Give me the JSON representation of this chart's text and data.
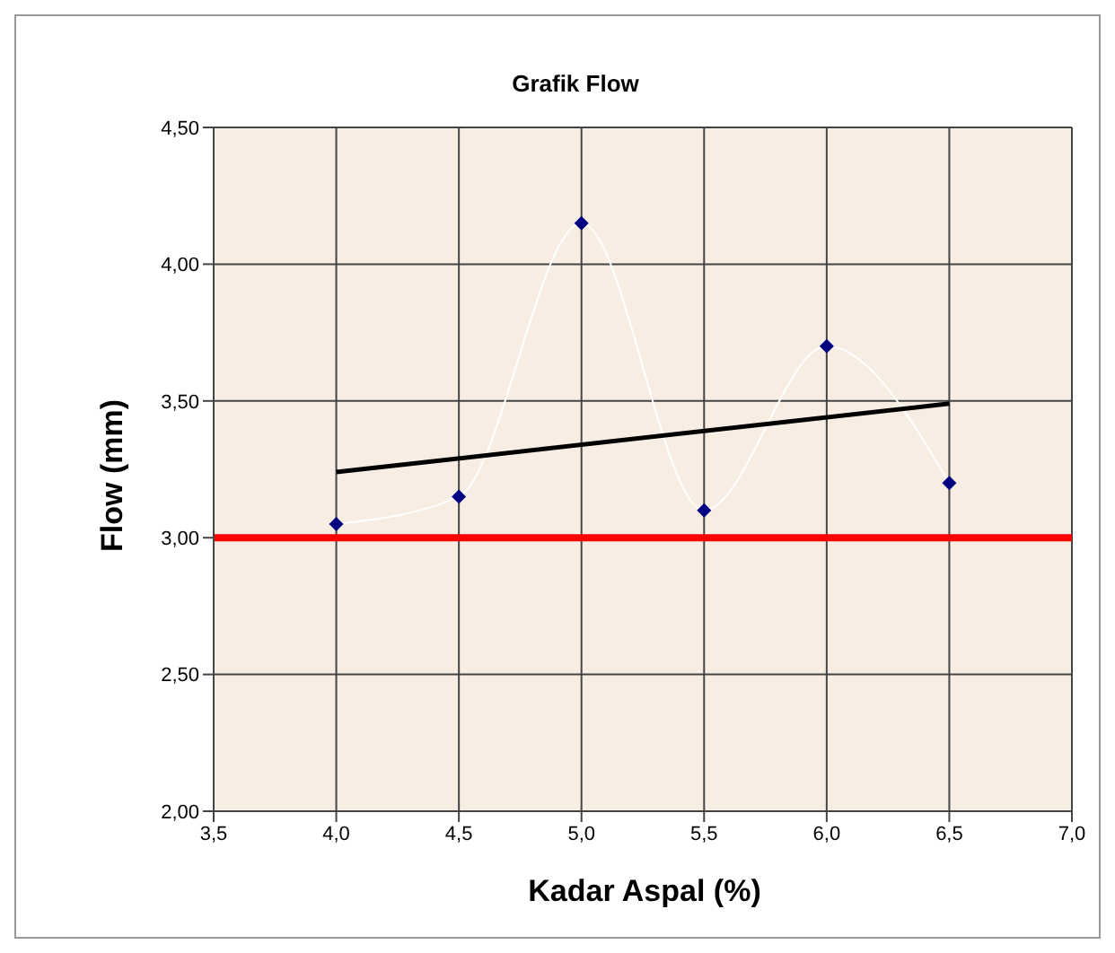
{
  "chart_data": {
    "type": "line",
    "title": "Grafik Flow",
    "xlabel": "Kadar Aspal (%)",
    "ylabel": "Flow (mm)",
    "x": [
      4.0,
      4.5,
      5.0,
      5.5,
      6.0,
      6.5
    ],
    "series": [
      {
        "color": "#ffffff",
        "marker": "none",
        "values": [
          3.05,
          3.15,
          4.15,
          3.1,
          3.7,
          3.2
        ]
      },
      {
        "type": "scatter",
        "color": "#000080",
        "marker": "diamond",
        "values": [
          3.05,
          3.15,
          4.15,
          3.1,
          3.7,
          3.2
        ]
      },
      {
        "color": "#000000",
        "marker": "none",
        "x": [
          4.0,
          6.5
        ],
        "values": [
          3.24,
          3.49
        ]
      }
    ],
    "xlim": [
      3.5,
      7.0
    ],
    "xticks": [
      {
        "value": 3.5,
        "label": "3,5"
      },
      {
        "value": 4.0,
        "label": "4,0"
      },
      {
        "value": 4.5,
        "label": "4,5"
      },
      {
        "value": 5.0,
        "label": "5,0"
      },
      {
        "value": 5.5,
        "label": "5,5"
      },
      {
        "value": 6.0,
        "label": "6,0"
      },
      {
        "value": 6.5,
        "label": "6,5"
      },
      {
        "value": 7.0,
        "label": "7,0"
      }
    ],
    "ylim": [
      2.0,
      4.5
    ],
    "yticks": [
      {
        "value": 2.0,
        "label": "2,00"
      },
      {
        "value": 2.5,
        "label": "2,50"
      },
      {
        "value": 3.0,
        "label": "3,00"
      },
      {
        "value": 3.5,
        "label": "3,50"
      },
      {
        "value": 4.0,
        "label": "4,00"
      },
      {
        "value": 4.5,
        "label": "4,50"
      }
    ],
    "ref_lines": [
      {
        "axis": "y",
        "value": 3.0,
        "color": "#ff0000"
      }
    ],
    "grid": true
  }
}
